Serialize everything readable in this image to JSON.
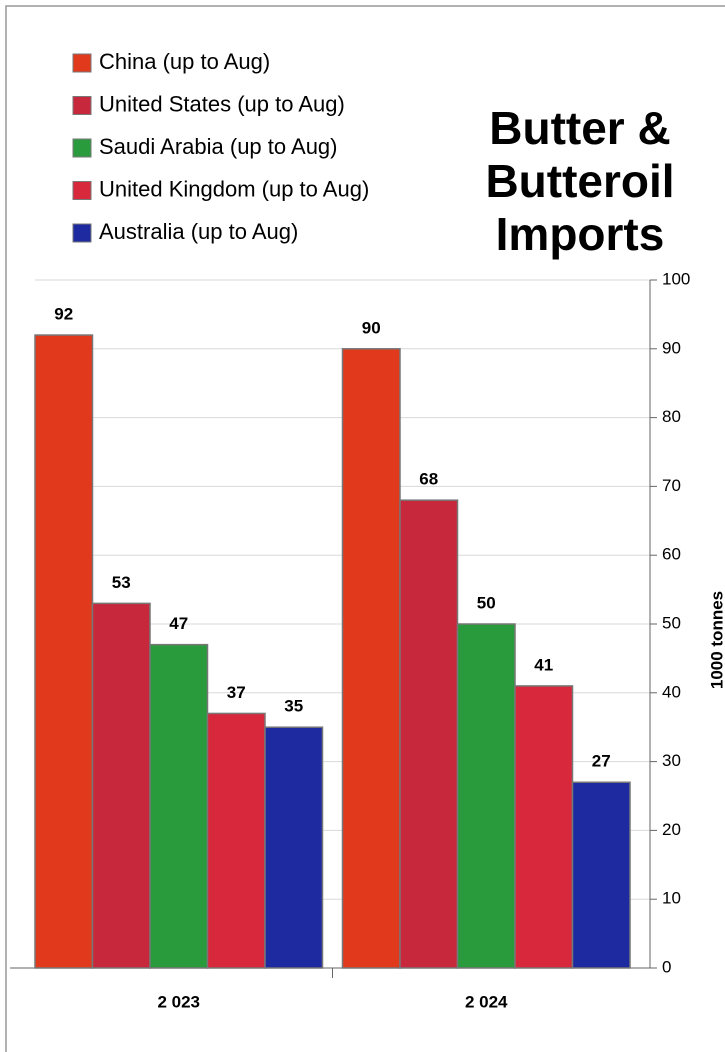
{
  "chart_data": {
    "type": "bar",
    "title_lines": [
      "Butter &",
      "Butteroil",
      "Imports"
    ],
    "y_label": "1000 tonnes",
    "categories": [
      "2 023",
      "2 024"
    ],
    "series": [
      {
        "name": "China (up to Aug)",
        "color": "#e0391c",
        "values": [
          92,
          90
        ]
      },
      {
        "name": "United States (up to Aug)",
        "color": "#c8283c",
        "values": [
          53,
          68
        ]
      },
      {
        "name": "Saudi Arabia (up to Aug)",
        "color": "#2a9b3c",
        "values": [
          47,
          50
        ]
      },
      {
        "name": "United Kingdom (up to Aug)",
        "color": "#d8283c",
        "values": [
          37,
          41
        ]
      },
      {
        "name": "Australia (up to Aug)",
        "color": "#1d2aa0",
        "values": [
          35,
          27
        ]
      }
    ],
    "ylim": [
      0,
      100
    ],
    "yticks": [
      0,
      10,
      20,
      30,
      40,
      50,
      60,
      70,
      80,
      90,
      100
    ],
    "grid": true
  }
}
